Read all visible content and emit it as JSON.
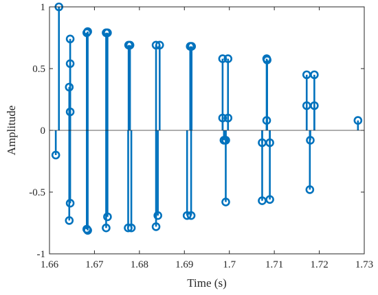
{
  "chart_data": {
    "type": "stem",
    "title": "",
    "xlabel": "Time (s)",
    "ylabel": "Amplitude",
    "xlim": [
      1.66,
      1.73
    ],
    "ylim": [
      -1,
      1
    ],
    "x_ticks": [
      1.66,
      1.67,
      1.68,
      1.69,
      1.7,
      1.71,
      1.72,
      1.73
    ],
    "x_tick_labels": [
      "1.66",
      "1.67",
      "1.68",
      "1.69",
      "1.7",
      "1.71",
      "1.72",
      "1.73"
    ],
    "y_ticks": [
      -1,
      -0.5,
      0,
      0.5,
      1
    ],
    "y_tick_labels": [
      "-1",
      "-0.5",
      "0",
      "0.5",
      "1"
    ],
    "baseline": 0,
    "grid": false,
    "box": true,
    "color": "#0072BD",
    "points": [
      {
        "x": 1.6614,
        "y": -0.2
      },
      {
        "x": 1.6621,
        "y": 1.0
      },
      {
        "x": 1.6646,
        "y": 0.74
      },
      {
        "x": 1.6646,
        "y": 0.54
      },
      {
        "x": 1.6644,
        "y": 0.35
      },
      {
        "x": 1.6646,
        "y": 0.15
      },
      {
        "x": 1.6646,
        "y": -0.59
      },
      {
        "x": 1.6644,
        "y": -0.73
      },
      {
        "x": 1.6683,
        "y": 0.79
      },
      {
        "x": 1.6685,
        "y": 0.8
      },
      {
        "x": 1.6683,
        "y": -0.8
      },
      {
        "x": 1.6685,
        "y": -0.81
      },
      {
        "x": 1.6726,
        "y": 0.79
      },
      {
        "x": 1.6729,
        "y": 0.79
      },
      {
        "x": 1.6729,
        "y": -0.7
      },
      {
        "x": 1.6726,
        "y": -0.79
      },
      {
        "x": 1.6776,
        "y": 0.69
      },
      {
        "x": 1.6779,
        "y": 0.69
      },
      {
        "x": 1.6775,
        "y": -0.79
      },
      {
        "x": 1.6782,
        "y": -0.79
      },
      {
        "x": 1.6837,
        "y": 0.69
      },
      {
        "x": 1.6845,
        "y": 0.69
      },
      {
        "x": 1.6841,
        "y": -0.69
      },
      {
        "x": 1.6837,
        "y": -0.78
      },
      {
        "x": 1.6913,
        "y": 0.68
      },
      {
        "x": 1.6916,
        "y": 0.68
      },
      {
        "x": 1.6906,
        "y": -0.69
      },
      {
        "x": 1.6915,
        "y": -0.69
      },
      {
        "x": 1.6985,
        "y": 0.58
      },
      {
        "x": 1.6997,
        "y": 0.58
      },
      {
        "x": 1.6985,
        "y": 0.1
      },
      {
        "x": 1.6997,
        "y": 0.1
      },
      {
        "x": 1.6988,
        "y": -0.08
      },
      {
        "x": 1.6992,
        "y": -0.08
      },
      {
        "x": 1.6992,
        "y": -0.58
      },
      {
        "x": 1.7073,
        "y": -0.1
      },
      {
        "x": 1.709,
        "y": -0.1
      },
      {
        "x": 1.7083,
        "y": 0.58
      },
      {
        "x": 1.7084,
        "y": 0.57
      },
      {
        "x": 1.7083,
        "y": 0.08
      },
      {
        "x": 1.7073,
        "y": -0.57
      },
      {
        "x": 1.709,
        "y": -0.56
      },
      {
        "x": 1.7172,
        "y": 0.45
      },
      {
        "x": 1.7189,
        "y": 0.45
      },
      {
        "x": 1.7172,
        "y": 0.2
      },
      {
        "x": 1.7189,
        "y": 0.2
      },
      {
        "x": 1.718,
        "y": -0.08
      },
      {
        "x": 1.7179,
        "y": -0.48
      },
      {
        "x": 1.7286,
        "y": 0.08
      }
    ]
  }
}
